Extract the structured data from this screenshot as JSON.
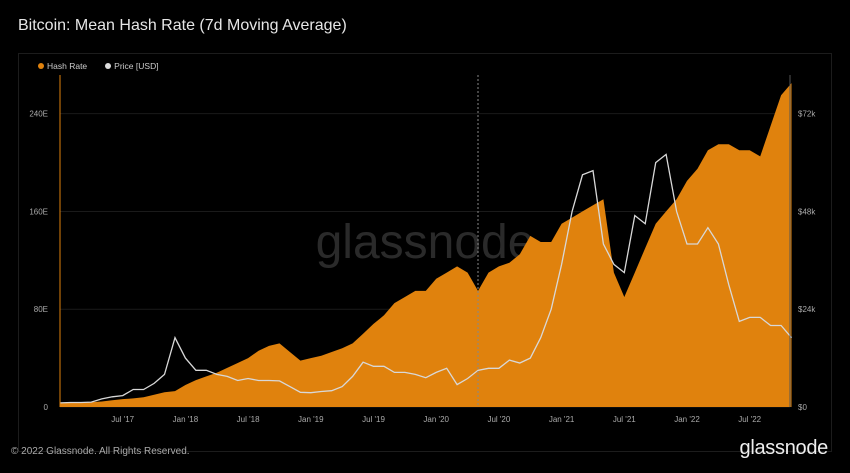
{
  "title": "Bitcoin: Mean Hash Rate (7d Moving Average)",
  "footer": {
    "copyright": "© 2022 Glassnode. All Rights Reserved.",
    "logo": "glassnode"
  },
  "watermark": "glassnode",
  "colors": {
    "hash": "#e0820d",
    "price": "#d8d8d8",
    "bg": "#000000"
  },
  "chart_data": {
    "type": "area",
    "title": "Bitcoin: Mean Hash Rate (7d Moving Average)",
    "legend": [
      "Hash Rate",
      "Price [USD]"
    ],
    "legend_position": "top-left",
    "x_ticks": [
      "Jul '17",
      "Jan '18",
      "Jul '18",
      "Jan '19",
      "Jul '19",
      "Jan '20",
      "Jul '20",
      "Jan '21",
      "Jul '21",
      "Jan '22",
      "Jul '22"
    ],
    "y_left_ticks": [
      "0",
      "80E",
      "160E",
      "240E"
    ],
    "y_right_ticks": [
      "$0",
      "$24k",
      "$48k",
      "$72k"
    ],
    "y_left_range": [
      0,
      288
    ],
    "y_right_range_usd_k": [
      0,
      86.4
    ],
    "marker": "2020-05",
    "x": [
      "2017-01",
      "2017-02",
      "2017-03",
      "2017-04",
      "2017-05",
      "2017-06",
      "2017-07",
      "2017-08",
      "2017-09",
      "2017-10",
      "2017-11",
      "2017-12",
      "2018-01",
      "2018-02",
      "2018-03",
      "2018-04",
      "2018-05",
      "2018-06",
      "2018-07",
      "2018-08",
      "2018-09",
      "2018-10",
      "2018-11",
      "2018-12",
      "2019-01",
      "2019-02",
      "2019-03",
      "2019-04",
      "2019-05",
      "2019-06",
      "2019-07",
      "2019-08",
      "2019-09",
      "2019-10",
      "2019-11",
      "2019-12",
      "2020-01",
      "2020-02",
      "2020-03",
      "2020-04",
      "2020-05",
      "2020-06",
      "2020-07",
      "2020-08",
      "2020-09",
      "2020-10",
      "2020-11",
      "2020-12",
      "2021-01",
      "2021-02",
      "2021-03",
      "2021-04",
      "2021-05",
      "2021-06",
      "2021-07",
      "2021-08",
      "2021-09",
      "2021-10",
      "2021-11",
      "2021-12",
      "2022-01",
      "2022-02",
      "2022-03",
      "2022-04",
      "2022-05",
      "2022-06",
      "2022-07",
      "2022-08",
      "2022-09",
      "2022-10",
      "2022-11"
    ],
    "series": [
      {
        "name": "Hash Rate",
        "unit": "EH/s",
        "values": [
          3,
          3.5,
          3.7,
          4,
          4.5,
          5.5,
          6.5,
          7,
          8,
          10,
          12,
          13,
          18,
          22,
          25,
          28,
          32,
          36,
          40,
          46,
          50,
          52,
          45,
          38,
          40,
          42,
          45,
          48,
          52,
          60,
          68,
          75,
          85,
          90,
          95,
          95,
          105,
          110,
          115,
          110,
          95,
          110,
          115,
          118,
          125,
          140,
          135,
          135,
          150,
          155,
          160,
          165,
          170,
          110,
          90,
          110,
          130,
          150,
          160,
          170,
          185,
          195,
          210,
          215,
          215,
          210,
          210,
          205,
          230,
          255,
          265
        ]
      },
      {
        "name": "Price [USD]",
        "unit": "USD thousands",
        "values": [
          1,
          1.1,
          1.1,
          1.2,
          2,
          2.5,
          2.8,
          4.3,
          4.3,
          5.8,
          8,
          17,
          12,
          9,
          9,
          8,
          7.5,
          6.5,
          7,
          6.5,
          6.5,
          6.4,
          5,
          3.6,
          3.5,
          3.8,
          4,
          5,
          7.5,
          11,
          10,
          10,
          8.5,
          8.5,
          8,
          7.2,
          8.5,
          9.5,
          5.5,
          7,
          9,
          9.5,
          9.5,
          11.5,
          10.8,
          12,
          17,
          24,
          35,
          48,
          57,
          58,
          40,
          35,
          33,
          47,
          45,
          60,
          62,
          48,
          40,
          40,
          44,
          40,
          30,
          21,
          22,
          22,
          20,
          20,
          17
        ]
      }
    ]
  }
}
